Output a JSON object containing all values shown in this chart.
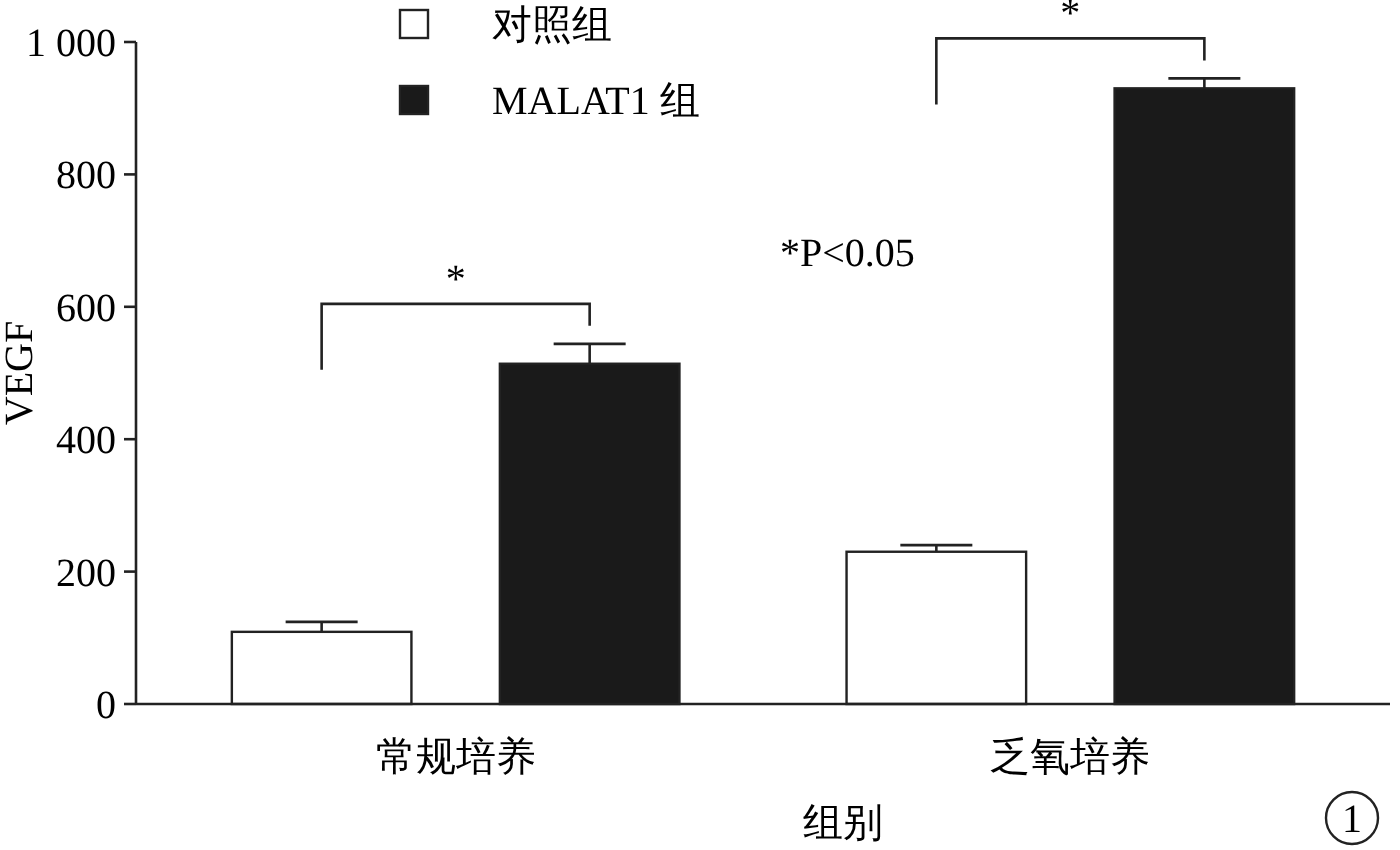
{
  "chart_data": {
    "type": "bar",
    "xlabel": "组别",
    "ylabel": "VEGF",
    "categories": [
      "常规培养",
      "乏氧培养"
    ],
    "series": [
      {
        "name": "对照组",
        "color": "#ffffff",
        "values": [
          109,
          230
        ],
        "errors": [
          15,
          10
        ]
      },
      {
        "name": "MALAT1 组",
        "color": "#1a1a1a",
        "values": [
          514,
          930
        ],
        "errors": [
          30,
          15
        ]
      }
    ],
    "ylim": [
      0,
      1000
    ],
    "yticks": [
      0,
      200,
      400,
      600,
      800,
      {
        "value": 1000,
        "label": "1 000"
      }
    ],
    "grid": false,
    "legend": "top left",
    "annotations": [
      "*",
      "*",
      "*P<0.05",
      "1"
    ]
  }
}
